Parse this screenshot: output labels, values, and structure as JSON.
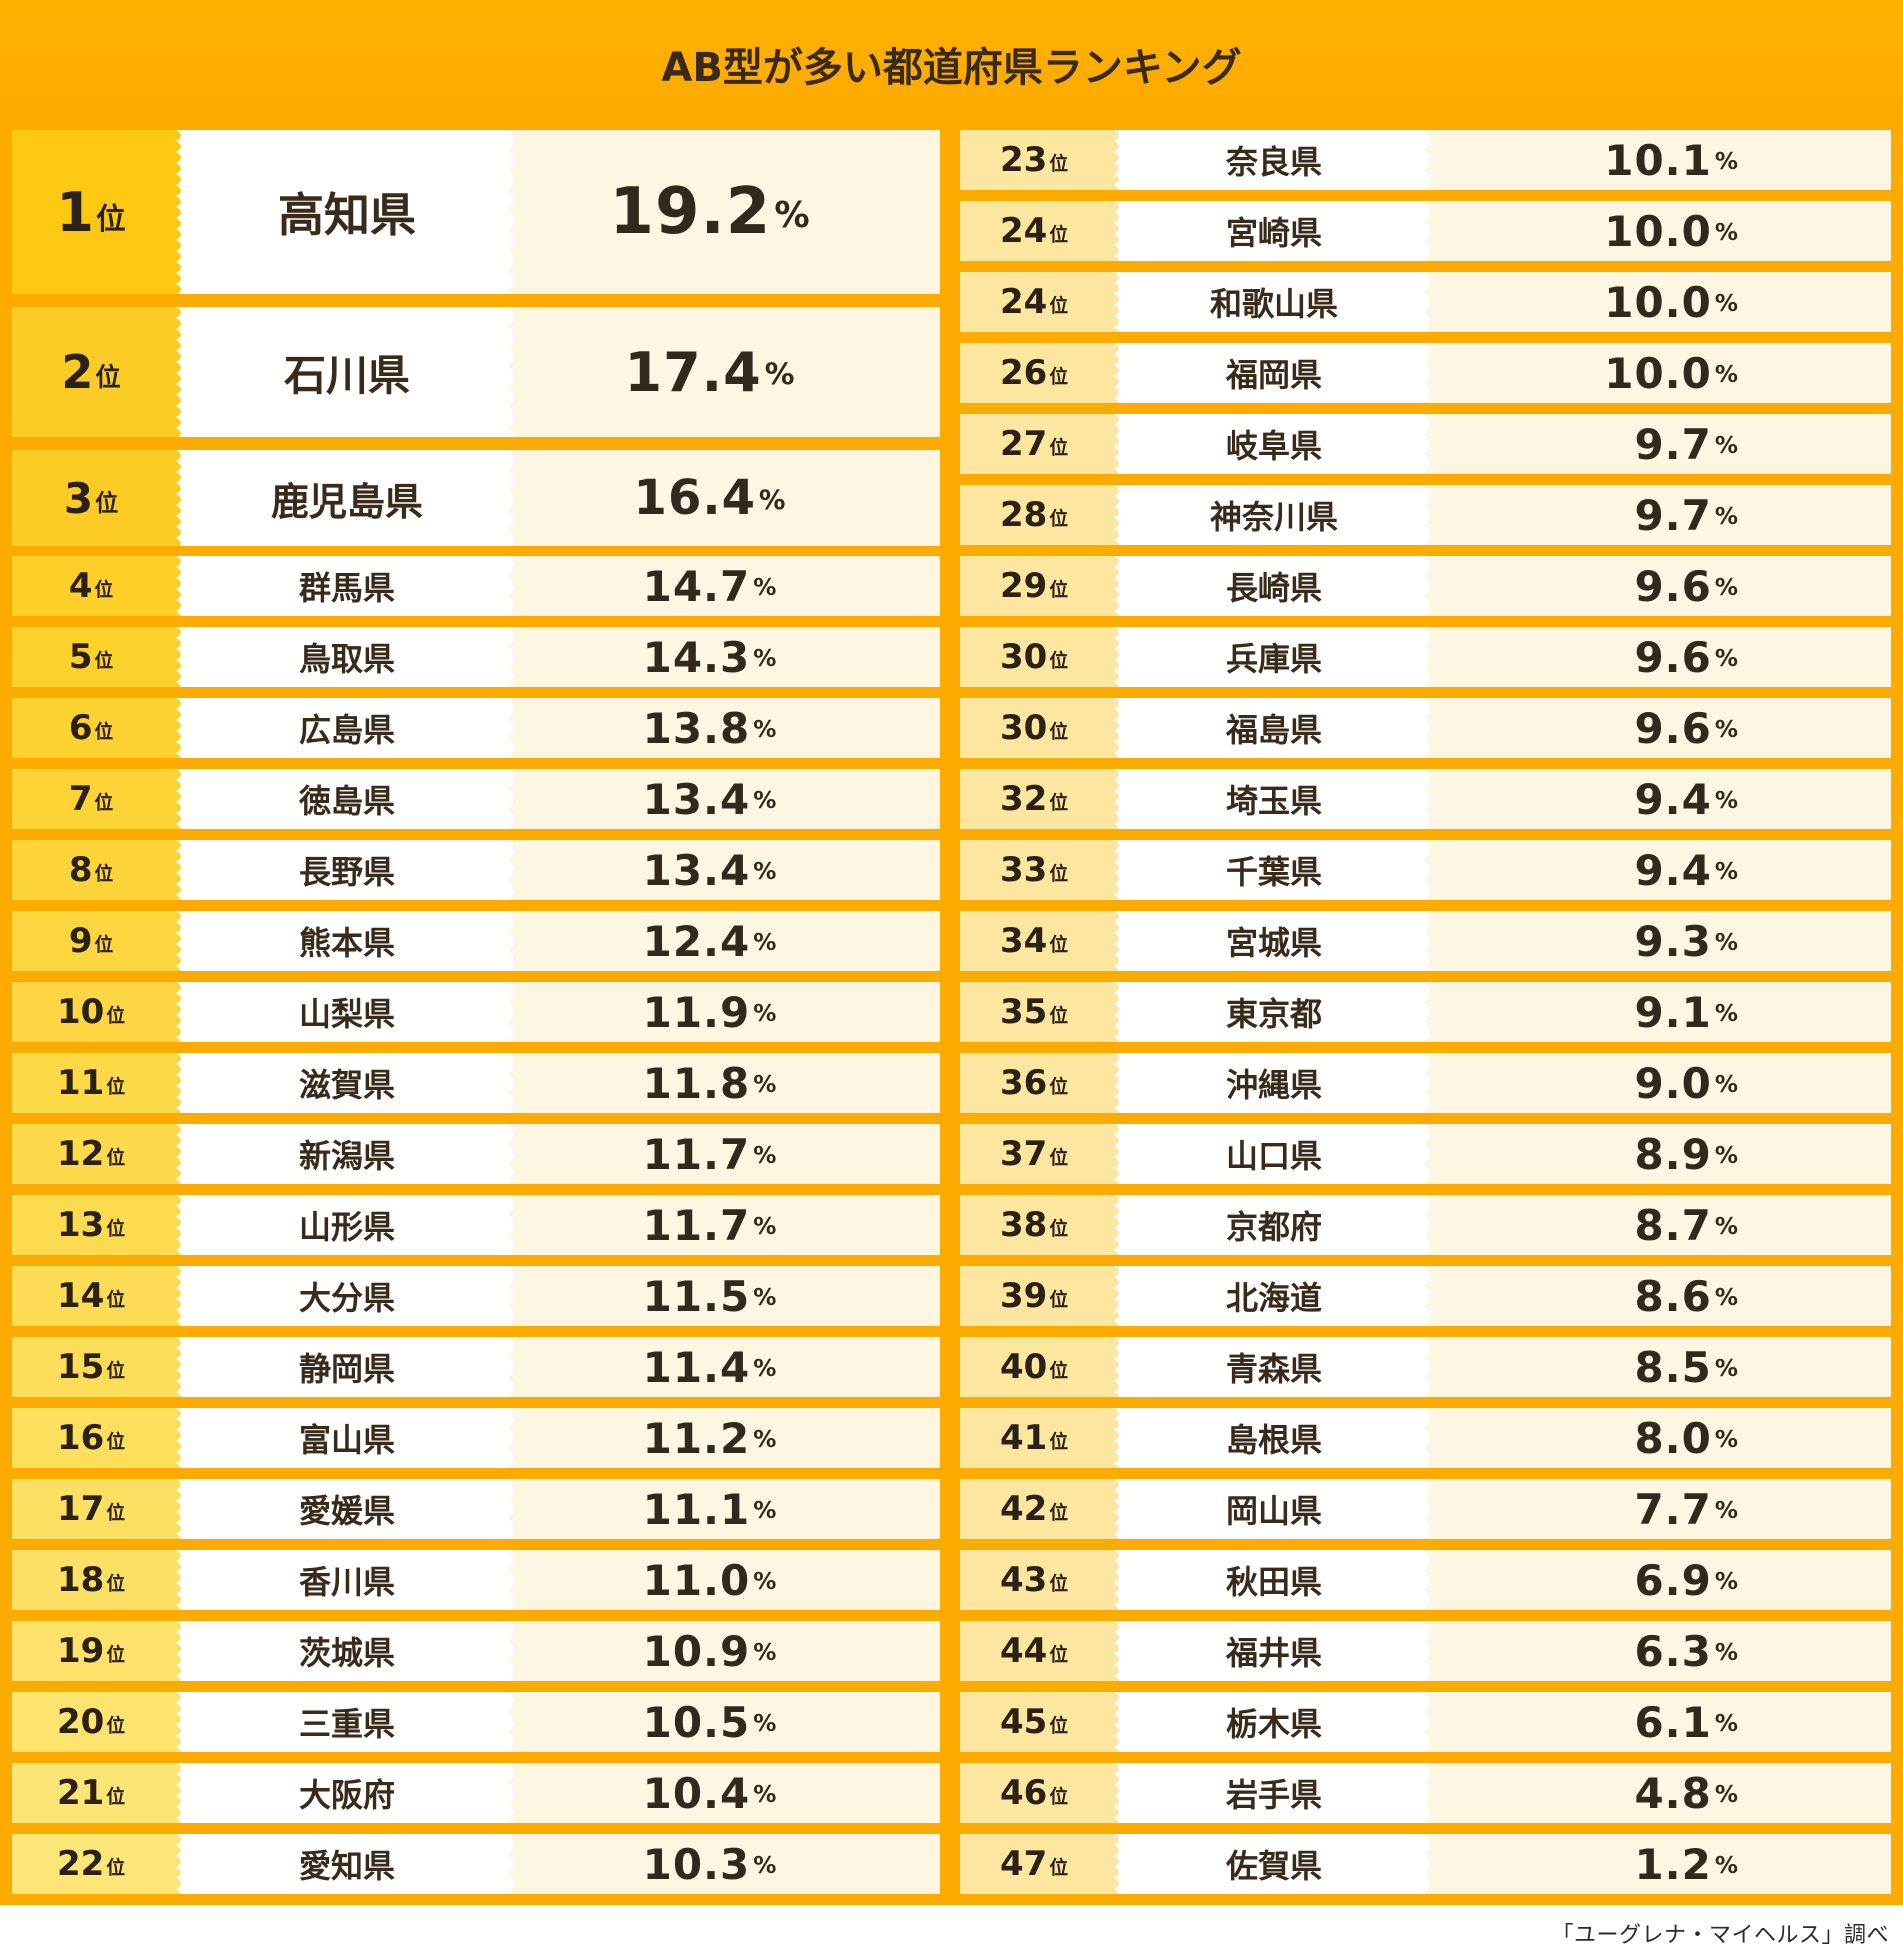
{
  "chart_data": {
    "type": "table",
    "title": "AB型が多い都道府県ランキング",
    "rank_suffix": "位",
    "unit": "%",
    "source": "「ユーグレナ・マイヘルス」調べ",
    "rows": [
      {
        "rank": "1",
        "prefecture": "高知県",
        "value": "19.2"
      },
      {
        "rank": "2",
        "prefecture": "石川県",
        "value": "17.4"
      },
      {
        "rank": "3",
        "prefecture": "鹿児島県",
        "value": "16.4"
      },
      {
        "rank": "4",
        "prefecture": "群馬県",
        "value": "14.7"
      },
      {
        "rank": "5",
        "prefecture": "鳥取県",
        "value": "14.3"
      },
      {
        "rank": "6",
        "prefecture": "広島県",
        "value": "13.8"
      },
      {
        "rank": "7",
        "prefecture": "徳島県",
        "value": "13.4"
      },
      {
        "rank": "8",
        "prefecture": "長野県",
        "value": "13.4"
      },
      {
        "rank": "9",
        "prefecture": "熊本県",
        "value": "12.4"
      },
      {
        "rank": "10",
        "prefecture": "山梨県",
        "value": "11.9"
      },
      {
        "rank": "11",
        "prefecture": "滋賀県",
        "value": "11.8"
      },
      {
        "rank": "12",
        "prefecture": "新潟県",
        "value": "11.7"
      },
      {
        "rank": "13",
        "prefecture": "山形県",
        "value": "11.7"
      },
      {
        "rank": "14",
        "prefecture": "大分県",
        "value": "11.5"
      },
      {
        "rank": "15",
        "prefecture": "静岡県",
        "value": "11.4"
      },
      {
        "rank": "16",
        "prefecture": "富山県",
        "value": "11.2"
      },
      {
        "rank": "17",
        "prefecture": "愛媛県",
        "value": "11.1"
      },
      {
        "rank": "18",
        "prefecture": "香川県",
        "value": "11.0"
      },
      {
        "rank": "19",
        "prefecture": "茨城県",
        "value": "10.9"
      },
      {
        "rank": "20",
        "prefecture": "三重県",
        "value": "10.5"
      },
      {
        "rank": "21",
        "prefecture": "大阪府",
        "value": "10.4"
      },
      {
        "rank": "22",
        "prefecture": "愛知県",
        "value": "10.3"
      },
      {
        "rank": "23",
        "prefecture": "奈良県",
        "value": "10.1"
      },
      {
        "rank": "24",
        "prefecture": "宮崎県",
        "value": "10.0"
      },
      {
        "rank": "24",
        "prefecture": "和歌山県",
        "value": "10.0"
      },
      {
        "rank": "26",
        "prefecture": "福岡県",
        "value": "10.0"
      },
      {
        "rank": "27",
        "prefecture": "岐阜県",
        "value": "9.7"
      },
      {
        "rank": "28",
        "prefecture": "神奈川県",
        "value": "9.7"
      },
      {
        "rank": "29",
        "prefecture": "長崎県",
        "value": "9.6"
      },
      {
        "rank": "30",
        "prefecture": "兵庫県",
        "value": "9.6"
      },
      {
        "rank": "30",
        "prefecture": "福島県",
        "value": "9.6"
      },
      {
        "rank": "32",
        "prefecture": "埼玉県",
        "value": "9.4"
      },
      {
        "rank": "33",
        "prefecture": "千葉県",
        "value": "9.4"
      },
      {
        "rank": "34",
        "prefecture": "宮城県",
        "value": "9.3"
      },
      {
        "rank": "35",
        "prefecture": "東京都",
        "value": "9.1"
      },
      {
        "rank": "36",
        "prefecture": "沖縄県",
        "value": "9.0"
      },
      {
        "rank": "37",
        "prefecture": "山口県",
        "value": "8.9"
      },
      {
        "rank": "38",
        "prefecture": "京都府",
        "value": "8.7"
      },
      {
        "rank": "39",
        "prefecture": "北海道",
        "value": "8.6"
      },
      {
        "rank": "40",
        "prefecture": "青森県",
        "value": "8.5"
      },
      {
        "rank": "41",
        "prefecture": "島根県",
        "value": "8.0"
      },
      {
        "rank": "42",
        "prefecture": "岡山県",
        "value": "7.7"
      },
      {
        "rank": "43",
        "prefecture": "秋田県",
        "value": "6.9"
      },
      {
        "rank": "44",
        "prefecture": "福井県",
        "value": "6.3"
      },
      {
        "rank": "45",
        "prefecture": "栃木県",
        "value": "6.1"
      },
      {
        "rank": "46",
        "prefecture": "岩手県",
        "value": "4.8"
      },
      {
        "rank": "47",
        "prefecture": "佐賀県",
        "value": "1.2"
      }
    ]
  }
}
